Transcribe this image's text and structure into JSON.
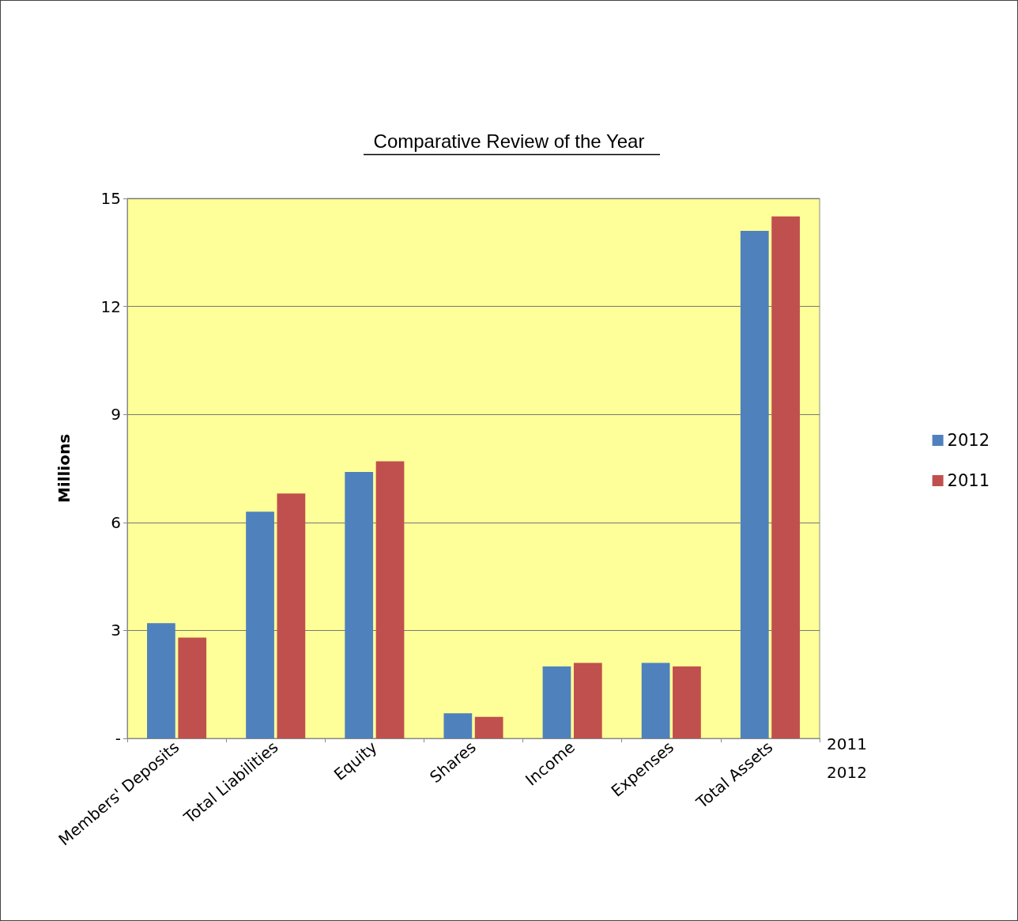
{
  "chart_data": {
    "type": "bar",
    "title": "Comparative Review of the Year",
    "ylabel": "Millions",
    "categories": [
      "Members' Deposits",
      "Total Liabilities",
      "Equity",
      "Shares",
      "Income",
      "Expenses",
      "Total Assets"
    ],
    "series": [
      {
        "name": "2012",
        "color": "#4f81bd",
        "values": [
          3.2,
          6.3,
          7.4,
          0.7,
          2.0,
          2.1,
          14.1
        ]
      },
      {
        "name": "2011",
        "color": "#c0504d",
        "values": [
          2.8,
          6.8,
          7.7,
          0.6,
          2.1,
          2.0,
          14.5
        ]
      }
    ],
    "ylim": [
      0,
      15
    ],
    "yticks": [
      {
        "value": 0,
        "label": "-"
      },
      3,
      6,
      9,
      12,
      15
    ],
    "grid": "y",
    "legend": "right",
    "annotations": [
      "2011",
      "2012"
    ]
  }
}
